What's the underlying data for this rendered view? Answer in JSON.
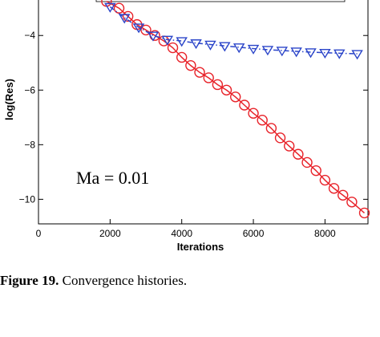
{
  "chart_data": {
    "type": "line",
    "xlabel": "Iterations",
    "ylabel": "log(Res)",
    "xlim": [
      0,
      9200
    ],
    "ylim": [
      -10.9,
      -2.7
    ],
    "x_ticks": [
      0,
      2000,
      4000,
      6000,
      8000
    ],
    "x_tick_labels": [
      "0",
      "2000",
      "4000",
      "6000",
      "8000"
    ],
    "y_ticks": [
      -4,
      -6,
      -8,
      -10
    ],
    "y_tick_labels": [
      "−4",
      "−6",
      "−8",
      "−10"
    ],
    "annotation": "Ma = 0.01",
    "legend": "top (partially cropped)",
    "grid": false,
    "series": [
      {
        "marker": "circle",
        "color": "#e8232a",
        "line_style": "solid",
        "x": [
          1900,
          2250,
          2500,
          2750,
          3000,
          3250,
          3500,
          3750,
          4000,
          4250,
          4500,
          4750,
          5000,
          5250,
          5500,
          5750,
          6000,
          6250,
          6500,
          6750,
          7000,
          7250,
          7500,
          7750,
          8000,
          8250,
          8500,
          8750,
          9100
        ],
        "y": [
          -2.75,
          -3.0,
          -3.3,
          -3.6,
          -3.8,
          -4.0,
          -4.2,
          -4.45,
          -4.8,
          -5.1,
          -5.35,
          -5.55,
          -5.8,
          -6.0,
          -6.25,
          -6.55,
          -6.85,
          -7.1,
          -7.4,
          -7.75,
          -8.05,
          -8.35,
          -8.65,
          -8.95,
          -9.3,
          -9.6,
          -9.85,
          -10.1,
          -10.5
        ]
      },
      {
        "marker": "triangle-down",
        "color": "#2b45c9",
        "line_style": "dash-dot",
        "x": [
          2000,
          2400,
          2800,
          3200,
          3600,
          4000,
          4400,
          4800,
          5200,
          5600,
          6000,
          6400,
          6800,
          7200,
          7600,
          8000,
          8400,
          8900
        ],
        "y": [
          -2.95,
          -3.35,
          -3.7,
          -4.0,
          -4.15,
          -4.2,
          -4.28,
          -4.33,
          -4.38,
          -4.43,
          -4.48,
          -4.52,
          -4.55,
          -4.58,
          -4.61,
          -4.63,
          -4.65,
          -4.67
        ]
      }
    ]
  },
  "caption": {
    "label": "Figure 19.",
    "text": " Convergence histories."
  }
}
